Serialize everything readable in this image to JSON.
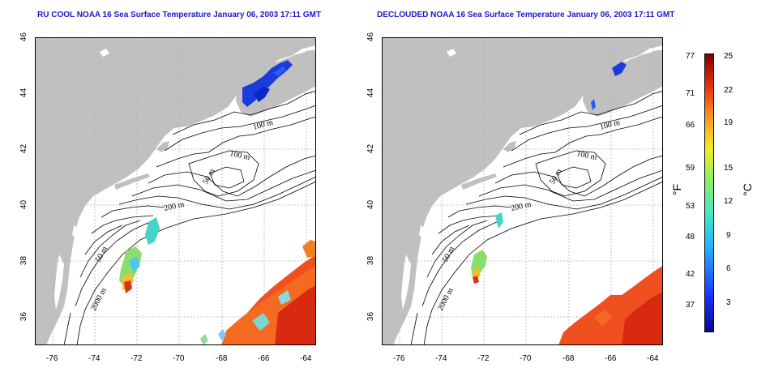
{
  "titles": {
    "left": "RU COOL NOAA 16 Sea Surface Temperature January 06, 2003 17:11 GMT",
    "right": "DECLOUDED NOAA 16 Sea Surface Temperature January 06, 2003 17:11 GMT"
  },
  "map": {
    "lon_ticks": [
      "-76",
      "-74",
      "-72",
      "-70",
      "-68",
      "-66",
      "-64"
    ],
    "lat_ticks": [
      "46",
      "44",
      "42",
      "40",
      "38",
      "36"
    ],
    "lon_range": [
      -77.2,
      -62.9
    ],
    "lat_range": [
      35.0,
      46.0
    ],
    "contour_labels": [
      "100 m",
      "100 m",
      "50 m",
      "200 m",
      "50 m",
      "2000 m"
    ],
    "colors": {
      "land": "#c0c0c0",
      "water": "#ffffff",
      "grid": "#b0b0b0",
      "contour": "#000000"
    }
  },
  "colorbar": {
    "fahrenheit_ticks": [
      "77",
      "71",
      "66",
      "59",
      "53",
      "48",
      "42",
      "37"
    ],
    "celsius_ticks": [
      "25",
      "22",
      "19",
      "15",
      "12",
      "9",
      "6",
      "3"
    ],
    "fahrenheit_unit": "°F",
    "celsius_unit": "°C",
    "range_celsius": [
      0,
      25
    ]
  }
}
